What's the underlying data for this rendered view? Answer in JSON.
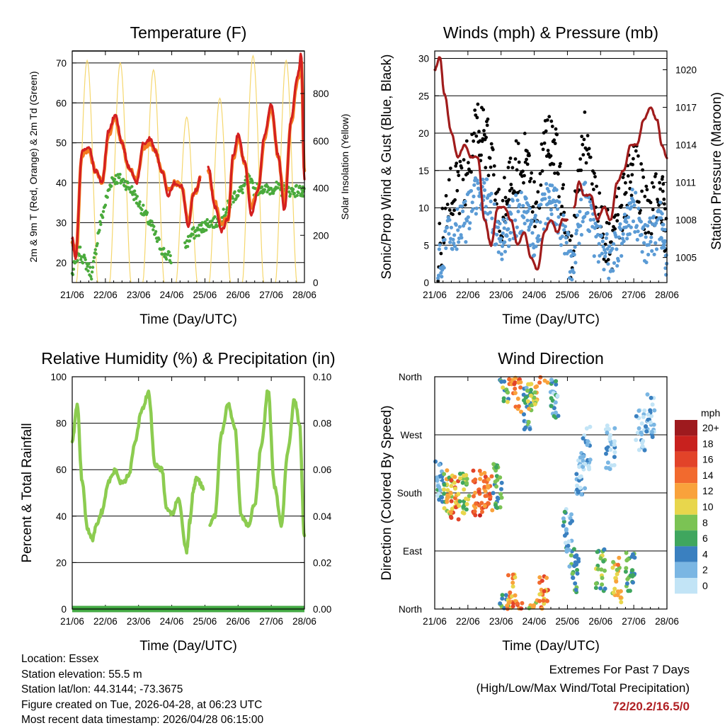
{
  "colors": {
    "red": "#d42020",
    "orange": "#f47b20",
    "green": "#4aaa3c",
    "yellow": "#f5d76e",
    "black": "#000000",
    "blue": "#5b9bd5",
    "maroon": "#a01c1c",
    "rh": "#8ccc50",
    "precip": "#44aa44",
    "extremes": "#b02024"
  },
  "chart_data": [
    {
      "id": "temperature",
      "type": "line",
      "title": "Temperature (F)",
      "xlabel": "Time (Day/UTC)",
      "ylabel": "2m & 9m T (Red, Orange) & 2m Td (Green)",
      "y2label": "Solar Insolation (Yellow)",
      "x_ticks": [
        "21/06",
        "22/06",
        "23/06",
        "24/06",
        "25/06",
        "26/06",
        "27/06",
        "28/06"
      ],
      "xlim": [
        0,
        7
      ],
      "ylim": [
        15,
        73
      ],
      "y_ticks": [
        20,
        30,
        40,
        50,
        60,
        70
      ],
      "y2lim": [
        0,
        980
      ],
      "y2_ticks": [
        0,
        200,
        400,
        600,
        800
      ],
      "grid": "horizontal",
      "series": [
        {
          "name": "2m T",
          "color": "red",
          "x": [
            0,
            0.1,
            0.3,
            0.5,
            0.7,
            0.9,
            1.1,
            1.3,
            1.5,
            1.7,
            1.95,
            2.15,
            2.35,
            2.5,
            2.7,
            2.9,
            3.1,
            3.3,
            3.5,
            3.65,
            3.75,
            3.85,
            3.95,
            4.1,
            4.3,
            4.5,
            4.7,
            4.85,
            5.0,
            5.2,
            5.4,
            5.6,
            5.8,
            6.0,
            6.2,
            6.4,
            6.6,
            6.8,
            6.9,
            7.0
          ],
          "values": [
            26,
            21,
            48,
            49,
            43,
            40,
            53,
            57,
            50,
            44,
            40,
            50,
            51,
            48,
            43,
            37,
            40,
            39,
            29,
            37,
            38,
            41,
            null,
            44,
            34,
            28,
            31,
            47,
            52,
            45,
            32,
            38,
            52,
            60,
            47,
            33,
            56,
            67,
            72,
            41
          ]
        },
        {
          "name": "9m T",
          "color": "orange",
          "x": [
            0,
            0.1,
            0.3,
            0.5,
            0.7,
            0.9,
            1.1,
            1.3,
            1.5,
            1.7,
            1.95,
            2.15,
            2.35,
            2.5,
            2.7,
            2.9,
            3.1,
            3.3,
            3.5,
            3.65,
            3.75,
            3.85,
            3.95,
            4.1,
            4.3,
            4.5,
            4.7,
            4.85,
            5.0,
            5.2,
            5.4,
            5.6,
            5.8,
            6.0,
            6.2,
            6.4,
            6.6,
            6.8,
            6.9,
            7.0
          ],
          "values": [
            25,
            22,
            47,
            48,
            43,
            40,
            52,
            56,
            50,
            44,
            41,
            49,
            50,
            48,
            43,
            38,
            40,
            39,
            30,
            37,
            38,
            41,
            null,
            43,
            35,
            30,
            31,
            46,
            51,
            45,
            34,
            38,
            51,
            59,
            47,
            35,
            55,
            66,
            71,
            43
          ]
        },
        {
          "name": "2m Td",
          "color": "green",
          "x": [
            0,
            0.2,
            0.4,
            0.6,
            0.8,
            1.0,
            1.2,
            1.4,
            1.6,
            1.8,
            2.0,
            2.2,
            2.4,
            2.6,
            2.8,
            3.0,
            3.2,
            3.4,
            3.6,
            3.8,
            3.95,
            4.1,
            4.3,
            4.5,
            4.7,
            4.9,
            5.1,
            5.3,
            5.5,
            5.7,
            5.9,
            6.1,
            6.3,
            6.5,
            6.7,
            6.9,
            7.0
          ],
          "values": [
            17,
            23,
            20,
            17,
            28,
            35,
            41,
            41,
            40,
            38,
            35,
            32,
            29,
            25,
            22,
            21,
            null,
            24,
            27,
            28,
            29,
            30,
            30,
            31,
            34,
            37,
            38,
            41,
            38,
            39,
            38,
            39,
            38,
            38,
            38,
            38,
            37
          ]
        },
        {
          "name": "Solar Insolation",
          "color": "yellow",
          "axis": "y2",
          "peak_days": [
            0.45,
            1.45,
            2.45,
            3.45,
            4.45,
            5.45,
            6.45
          ],
          "peak_values": [
            940,
            930,
            900,
            700,
            780,
            960,
            940
          ]
        }
      ]
    },
    {
      "id": "winds",
      "type": "scatter",
      "title": "Winds (mph) & Pressure (mb)",
      "xlabel": "Time (Day/UTC)",
      "ylabel": "Sonic/Prop Wind & Gust (Blue, Black)",
      "y2label": "Station Pressure (Maroon)",
      "x_ticks": [
        "21/06",
        "22/06",
        "23/06",
        "24/06",
        "25/06",
        "26/06",
        "27/06",
        "28/06"
      ],
      "xlim": [
        0,
        7
      ],
      "ylim": [
        0,
        31
      ],
      "y_ticks": [
        0,
        5,
        10,
        15,
        20,
        25,
        30
      ],
      "y2lim": [
        1003,
        1021.5
      ],
      "y2_ticks": [
        1005,
        1008,
        1011,
        1014,
        1017,
        1020
      ],
      "grid": "horizontal",
      "series": [
        {
          "name": "Gust",
          "color": "black",
          "x": [
            0.1,
            0.5,
            0.9,
            1.3,
            1.6,
            2.0,
            2.3,
            2.7,
            3.0,
            3.4,
            3.7,
            4.1,
            4.5,
            4.9,
            5.3,
            5.7,
            6.0,
            6.4,
            6.8,
            7.0
          ],
          "values": [
            3,
            12,
            14,
            21,
            18,
            9,
            14,
            17,
            10,
            20,
            16,
            4,
            20,
            9,
            5,
            11,
            16,
            9,
            13,
            5
          ]
        },
        {
          "name": "Wind",
          "color": "blue",
          "x": [
            0.1,
            0.5,
            0.9,
            1.3,
            1.6,
            2.0,
            2.3,
            2.7,
            3.0,
            3.4,
            3.7,
            4.1,
            4.5,
            4.9,
            5.3,
            5.7,
            6.0,
            6.4,
            6.8,
            7.0
          ],
          "values": [
            2,
            7,
            8,
            12,
            11,
            5,
            8,
            10,
            6,
            11,
            10,
            2,
            11,
            5,
            3,
            7,
            10,
            5,
            8,
            3
          ]
        },
        {
          "name": "Station Pressure",
          "color": "maroon",
          "axis": "y2",
          "x": [
            0,
            0.15,
            0.3,
            0.5,
            0.7,
            0.9,
            1.1,
            1.3,
            1.5,
            1.7,
            1.9,
            2.1,
            2.3,
            2.5,
            2.7,
            2.9,
            3.1,
            3.3,
            3.5,
            3.7,
            3.85,
            4.0,
            4.1,
            4.2,
            4.35,
            4.5,
            4.7,
            4.9,
            5.1,
            5.3,
            5.5,
            5.7,
            5.9,
            6.1,
            6.3,
            6.5,
            6.7,
            6.85,
            7.0
          ],
          "values": [
            1020,
            1021,
            1018,
            1015,
            1013,
            1014,
            1013,
            1013,
            1008,
            1006,
            1009,
            1009,
            1008,
            1006,
            1007,
            1005,
            1004,
            1007,
            1008,
            1007,
            1008,
            1008,
            null,
            1009,
            1011,
            1010,
            1010,
            1008,
            1009,
            1008,
            1011,
            1012,
            1014,
            1014,
            1016,
            1017,
            1016,
            1014,
            1013
          ]
        }
      ]
    },
    {
      "id": "humidity",
      "type": "line",
      "title": "Relative Humidity (%) & Precipitation (in)",
      "xlabel": "Time (Day/UTC)",
      "ylabel": "Percent & Total Rainfall",
      "x_ticks": [
        "21/06",
        "22/06",
        "23/06",
        "24/06",
        "25/06",
        "26/06",
        "27/06",
        "28/06"
      ],
      "xlim": [
        0,
        7
      ],
      "ylim": [
        0,
        100
      ],
      "y_ticks": [
        0,
        20,
        40,
        60,
        80,
        100
      ],
      "y2lim": [
        0,
        0.1
      ],
      "y2_ticks": [
        "0.00",
        "0.02",
        "0.04",
        "0.06",
        "0.08",
        "0.10"
      ],
      "grid": "horizontal",
      "series": [
        {
          "name": "Relative Humidity",
          "color": "rh",
          "x": [
            0,
            0.15,
            0.3,
            0.45,
            0.6,
            0.75,
            0.9,
            1.1,
            1.3,
            1.5,
            1.7,
            1.9,
            2.1,
            2.3,
            2.5,
            2.7,
            2.85,
            3.0,
            3.2,
            3.45,
            3.55,
            3.65,
            3.75,
            3.95,
            4.05,
            4.15,
            4.3,
            4.5,
            4.7,
            4.9,
            5.1,
            5.3,
            5.5,
            5.7,
            5.9,
            6.1,
            6.3,
            6.5,
            6.7,
            6.85,
            7.0
          ],
          "values": [
            72,
            88,
            55,
            35,
            30,
            37,
            42,
            55,
            60,
            54,
            57,
            72,
            86,
            93,
            62,
            60,
            43,
            41,
            47,
            25,
            38,
            51,
            57,
            52,
            null,
            36,
            40,
            76,
            88,
            78,
            40,
            36,
            45,
            70,
            94,
            53,
            36,
            68,
            90,
            80,
            31
          ]
        },
        {
          "name": "Total Rainfall",
          "color": "precip",
          "axis": "y2",
          "x": [
            0,
            7
          ],
          "values": [
            0,
            0
          ]
        }
      ]
    },
    {
      "id": "wind_direction",
      "type": "scatter",
      "title": "Wind Direction",
      "xlabel": "Time (Day/UTC)",
      "ylabel": "Direction (Colored By Speed)",
      "x_ticks": [
        "21/06",
        "22/06",
        "23/06",
        "24/06",
        "25/06",
        "26/06",
        "27/06",
        "28/06"
      ],
      "xlim": [
        0,
        7
      ],
      "ylim": [
        0,
        360
      ],
      "y_ticks": [
        "North",
        "East",
        "South",
        "West",
        "North"
      ],
      "grid": "horizontal",
      "colorbar": {
        "unit": "mph",
        "labels": [
          "20+",
          "18",
          "16",
          "14",
          "12",
          "10",
          "8",
          "6",
          "4",
          "2",
          "0"
        ],
        "colors": [
          "#9e1a1e",
          "#c8211e",
          "#e24329",
          "#f26a2e",
          "#f9a23b",
          "#e8d64c",
          "#7bc354",
          "#3fa65e",
          "#3a80c0",
          "#7ab6e3",
          "#c2e4f6"
        ]
      },
      "clusters": [
        {
          "x": 0.15,
          "dir": 200,
          "speed": 3
        },
        {
          "x": 0.4,
          "dir": 180,
          "speed": 9
        },
        {
          "x": 0.6,
          "dir": 170,
          "speed": 13
        },
        {
          "x": 0.9,
          "dir": 175,
          "speed": 8
        },
        {
          "x": 1.3,
          "dir": 180,
          "speed": 15
        },
        {
          "x": 1.6,
          "dir": 180,
          "speed": 14
        },
        {
          "x": 1.9,
          "dir": 190,
          "speed": 6
        },
        {
          "x": 2.1,
          "dir": 350,
          "speed": 7
        },
        {
          "x": 2.3,
          "dir": 20,
          "speed": 12
        },
        {
          "x": 2.5,
          "dir": 340,
          "speed": 14
        },
        {
          "x": 2.8,
          "dir": 310,
          "speed": 5
        },
        {
          "x": 2.95,
          "dir": 340,
          "speed": 10
        },
        {
          "x": 3.3,
          "dir": 20,
          "speed": 13
        },
        {
          "x": 3.6,
          "dir": 330,
          "speed": 3
        },
        {
          "x": 4.0,
          "dir": 120,
          "speed": 3
        },
        {
          "x": 4.2,
          "dir": 60,
          "speed": 5
        },
        {
          "x": 4.4,
          "dir": 210,
          "speed": 2
        },
        {
          "x": 4.6,
          "dir": 250,
          "speed": 2
        },
        {
          "x": 5.0,
          "dir": 60,
          "speed": 7
        },
        {
          "x": 5.3,
          "dir": 250,
          "speed": 2
        },
        {
          "x": 5.5,
          "dir": 45,
          "speed": 11
        },
        {
          "x": 5.9,
          "dir": 60,
          "speed": 6
        },
        {
          "x": 6.2,
          "dir": 280,
          "speed": 1
        },
        {
          "x": 6.5,
          "dir": 300,
          "speed": 2
        }
      ]
    }
  ],
  "footer": {
    "location": "Location: Essex",
    "elevation": "Station elevation: 55.5 m",
    "latlon": "Station lat/lon: 44.3144; -73.3675",
    "created": "Figure created on Tue, 2026-04-28, at 06:23 UTC",
    "recent": "Most recent data timestamp: 2026/04/28 06:15:00",
    "extremes_title": "Extremes For Past 7 Days",
    "extremes_subtitle": "(High/Low/Max Wind/Total Precipitation)",
    "extremes_values": "72/20.2/16.5/0"
  }
}
